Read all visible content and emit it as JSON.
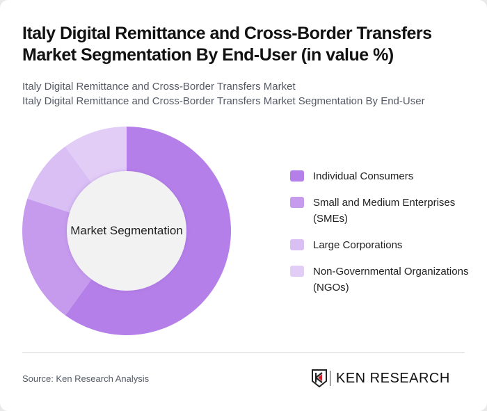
{
  "header": {
    "title": "Italy Digital Remittance and Cross-Border Transfers Market Segmentation By End-User (in value %)",
    "subtitle_line1": "Italy Digital Remittance and Cross-Border Transfers Market",
    "subtitle_line2": "Italy Digital Remittance and Cross-Border Transfers Market Segmentation By End-User"
  },
  "chart": {
    "center_label": "Market Segmentation"
  },
  "legend": {
    "items": [
      {
        "label": "Individual Consumers",
        "color": "#b57fe9"
      },
      {
        "label": "Small and Medium Enterprises (SMEs)",
        "color": "#c69bed"
      },
      {
        "label": "Large Corporations",
        "color": "#d9bff4"
      },
      {
        "label": "Non-Governmental Organizations (NGOs)",
        "color": "#e2cdf7"
      }
    ]
  },
  "footer": {
    "source": "Source: Ken Research Analysis",
    "logo_text": "KEN RESEARCH"
  },
  "chart_data": {
    "type": "pie",
    "subtype": "donut",
    "title": "Italy Digital Remittance and Cross-Border Transfers Market Segmentation By End-User (in value %)",
    "center_label": "Market Segmentation",
    "categories": [
      "Individual Consumers",
      "Small and Medium Enterprises (SMEs)",
      "Large Corporations",
      "Non-Governmental Organizations (NGOs)"
    ],
    "values": [
      60,
      20,
      10,
      10
    ],
    "colors": [
      "#b57fe9",
      "#c69bed",
      "#d9bff4",
      "#e2cdf7"
    ],
    "legend_position": "right",
    "start_angle": "top, clockwise"
  }
}
